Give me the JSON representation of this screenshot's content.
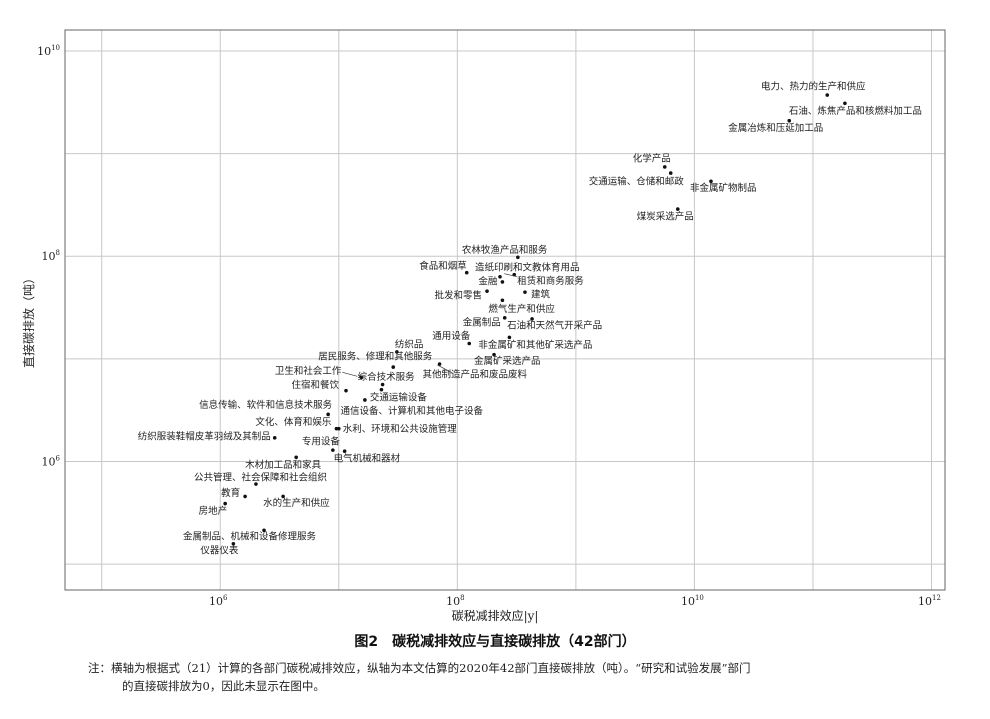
{
  "chart_data": {
    "type": "scatter",
    "title": "",
    "xlabel": "碳税减排效应|y|",
    "ylabel": "直接碳排放（吨）",
    "x_scale": "log",
    "y_scale": "log",
    "xlim": [
      49000.0,
      1300000000000.0
    ],
    "ylim": [
      56000.0,
      16000000000.0
    ],
    "grid": true,
    "x_ticks": [
      {
        "base": "10",
        "exp": "6",
        "value": 1000000.0
      },
      {
        "base": "10",
        "exp": "8",
        "value": 100000000.0
      },
      {
        "base": "10",
        "exp": "10",
        "value": 10000000000.0
      },
      {
        "base": "10",
        "exp": "12",
        "value": 1000000000000.0
      }
    ],
    "y_ticks": [
      {
        "base": "10",
        "exp": "6",
        "value": 1000000.0
      },
      {
        "base": "10",
        "exp": "8",
        "value": 100000000.0
      },
      {
        "base": "10",
        "exp": "10",
        "value": 10000000000.0
      }
    ],
    "points": [
      {
        "label": "电力、热力的生产和供应",
        "x": 132000000000.0,
        "y": 3720000000.0
      },
      {
        "label": "石油、炼焦产品和核燃料加工品",
        "x": 186000000000.0,
        "y": 3090000000.0
      },
      {
        "label": "金属冶炼和压延加工品",
        "x": 63100000000.0,
        "y": 2090000000.0
      },
      {
        "label": "化学产品",
        "x": 5620000000.0,
        "y": 741000000.0
      },
      {
        "label": "交通运输、仓储和邮政",
        "x": 6310000000.0,
        "y": 646000000.0
      },
      {
        "label": "非金属矿物制品",
        "x": 13800000000.0,
        "y": 537000000.0
      },
      {
        "label": "煤炭采选产品",
        "x": 7240000000.0,
        "y": 288000000.0
      },
      {
        "label": "农林牧渔产品和服务",
        "x": 324000000.0,
        "y": 97700000.0
      },
      {
        "label": "食品和烟草",
        "x": 120000000.0,
        "y": 69200000.0
      },
      {
        "label": "造纸印刷和文教体育用品",
        "x": 229000000.0,
        "y": 63100000.0
      },
      {
        "label": "租赁和商务服务",
        "x": 302000000.0,
        "y": 66100000.0
      },
      {
        "label": "金融",
        "x": 240000000.0,
        "y": 56200000.0
      },
      {
        "label": "批发和零售",
        "x": 178000000.0,
        "y": 45700000.0
      },
      {
        "label": "建筑",
        "x": 372000000.0,
        "y": 44700000.0
      },
      {
        "label": "燃气生产和供应",
        "x": 240000000.0,
        "y": 37200000.0
      },
      {
        "label": "金属制品",
        "x": 251000000.0,
        "y": 25100000.0
      },
      {
        "label": "石油和天然气开采产品",
        "x": 427000000.0,
        "y": 24500000.0
      },
      {
        "label": "通用设备",
        "x": 126000000.0,
        "y": 14100000.0
      },
      {
        "label": "非金属矿和其他矿采选产品",
        "x": 275000000.0,
        "y": 16200000.0
      },
      {
        "label": "金属矿采选产品",
        "x": 204000000.0,
        "y": 11000000.0
      },
      {
        "label": "其他制造产品和废品废料",
        "x": 70800000.0,
        "y": 8910000.0
      },
      {
        "label": "纺织品",
        "x": 30900000.0,
        "y": 11700000.0
      },
      {
        "label": "居民服务、修理和其他服务",
        "x": 28800000.0,
        "y": 8320000.0
      },
      {
        "label": "卫生和社会工作",
        "x": 15500000.0,
        "y": 6610000.0
      },
      {
        "label": "综合技术服务",
        "x": 23400000.0,
        "y": 5620000.0
      },
      {
        "label": "住宿和餐饮",
        "x": 11500000.0,
        "y": 4900000.0
      },
      {
        "label": "交通运输设备",
        "x": 16600000.0,
        "y": 3980000.0
      },
      {
        "label": "信息传输、软件和信息技术服务",
        "x": 8130000.0,
        "y": 2880000.0
      },
      {
        "label": "通信设备、计算机和其他电子设备",
        "x": 22900000.0,
        "y": 5010000.0
      },
      {
        "label": "文化、体育和娱乐",
        "x": 9550000.0,
        "y": 2090000.0
      },
      {
        "label": "水利、环境和公共设施管理",
        "x": 10000000.0,
        "y": 2090000.0
      },
      {
        "label": "纺织服装鞋帽皮革羽绒及其制品",
        "x": 2880000.0,
        "y": 1700000.0
      },
      {
        "label": "专用设备",
        "x": 8910000.0,
        "y": 1290000.0
      },
      {
        "label": "电气机械和器材",
        "x": 11200000.0,
        "y": 1260000.0
      },
      {
        "label": "木材加工品和家具",
        "x": 4370000.0,
        "y": 1100000.0
      },
      {
        "label": "公共管理、社会保障和社会组织",
        "x": 2000000.0,
        "y": 603000.0
      },
      {
        "label": "教育",
        "x": 1620000.0,
        "y": 457000.0
      },
      {
        "label": "水的生产和供应",
        "x": 3390000.0,
        "y": 457000.0
      },
      {
        "label": "房地产",
        "x": 1100000.0,
        "y": 389000.0
      },
      {
        "label": "金属制品、机械和设备修理服务",
        "x": 2340000.0,
        "y": 214000.0
      },
      {
        "label": "仪器仪表",
        "x": 1290000.0,
        "y": 158000.0
      }
    ]
  },
  "caption": "图2　碳税减排效应与直接碳排放（42部门）",
  "note": {
    "line1": "注：横轴为根据式（21）计算的各部门碳税减排效应，纵轴为本文估算的2020年42部门直接碳排放（吨）。“研究和试验发展”部门",
    "line2": "的直接碳排放为0，因此未显示在图中。"
  },
  "colors": {
    "grid": "#c8c8c8",
    "axis": "#555555",
    "point": "#111111",
    "text": "#222222"
  }
}
